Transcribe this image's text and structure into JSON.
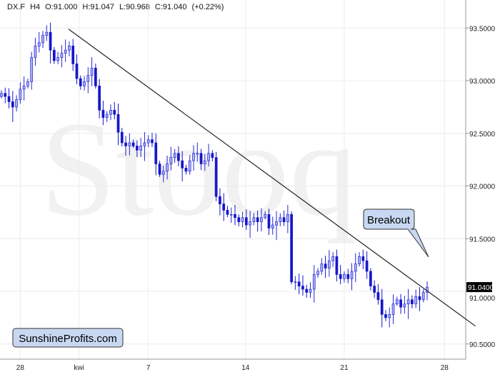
{
  "header": {
    "symbol": "DX.F",
    "interval": "H4",
    "open": "O:91.000",
    "high": "H:91.047",
    "low": "L:90.968",
    "close": "C:91.040",
    "change": "(+0.22%)"
  },
  "watermark": "Stooq",
  "branding": "SunshineProfits.com",
  "annotation": "Breakout",
  "colors": {
    "bull_fill": "#a9aef2",
    "bull_border": "#2626d6",
    "bear": "#1616cc",
    "trendline": "#222222",
    "grid": "#ececec",
    "last_price_bg": "#000000"
  },
  "chart_data": {
    "type": "candlestick",
    "title": "",
    "ylim": [
      90.42,
      93.72
    ],
    "y_ticks": [
      "93.5000",
      "93.0000",
      "92.5000",
      "92.0000",
      "91.5000",
      "91.0000",
      "90.5000"
    ],
    "y_tick_values": [
      93.5,
      93.0,
      92.5,
      92.0,
      91.5,
      91.0,
      90.5
    ],
    "x_ticks": [
      {
        "label": "28",
        "index": 5
      },
      {
        "label": "kwi",
        "index": 20.6
      },
      {
        "label": "7",
        "index": 39
      },
      {
        "label": "14",
        "index": 64.8
      },
      {
        "label": "21",
        "index": 91
      },
      {
        "label": "28",
        "index": 117.6
      }
    ],
    "first_open": 92.85,
    "closes": [
      92.88,
      92.85,
      92.8,
      92.75,
      92.82,
      92.92,
      92.95,
      92.99,
      93.22,
      93.33,
      93.36,
      93.43,
      93.46,
      93.29,
      93.19,
      93.22,
      93.26,
      93.29,
      93.33,
      93.16,
      93.02,
      92.95,
      92.99,
      93.05,
      93.12,
      92.95,
      92.72,
      92.65,
      92.68,
      92.72,
      92.68,
      92.51,
      92.41,
      92.38,
      92.41,
      92.38,
      92.34,
      92.38,
      92.41,
      92.44,
      92.41,
      92.21,
      92.11,
      92.14,
      92.21,
      92.27,
      92.31,
      92.24,
      92.17,
      92.14,
      92.24,
      92.31,
      92.31,
      92.21,
      92.24,
      92.31,
      92.27,
      91.9,
      91.83,
      91.77,
      91.73,
      91.73,
      91.7,
      91.66,
      91.7,
      91.63,
      91.66,
      91.7,
      91.66,
      91.7,
      91.73,
      91.6,
      91.63,
      91.66,
      91.7,
      91.66,
      91.73,
      91.09,
      91.09,
      91.05,
      91.02,
      90.99,
      91.02,
      91.16,
      91.19,
      91.26,
      91.22,
      91.29,
      91.33,
      91.16,
      91.12,
      91.16,
      91.12,
      91.19,
      91.26,
      91.33,
      91.29,
      91.19,
      91.05,
      90.99,
      90.92,
      90.78,
      90.75,
      90.78,
      90.88,
      90.92,
      90.85,
      90.88,
      90.92,
      90.88,
      90.95,
      90.92,
      90.99,
      91.04
    ],
    "last_price": "91.0400",
    "trendline": {
      "start": {
        "index": 17.8,
        "price": 93.49
      },
      "end": {
        "index": 125.8,
        "price": 90.67
      }
    }
  }
}
